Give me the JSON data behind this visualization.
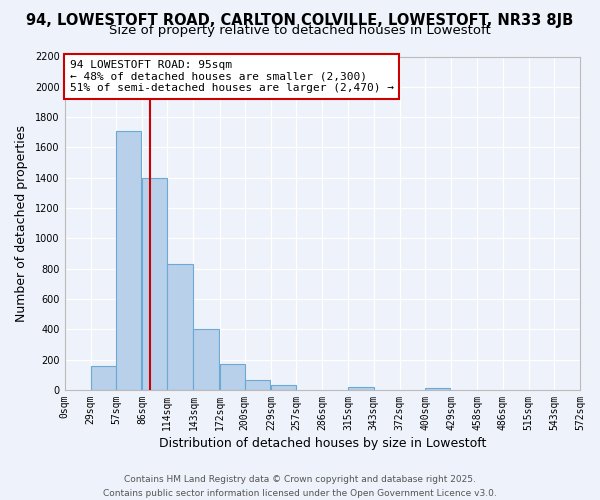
{
  "title": "94, LOWESTOFT ROAD, CARLTON COLVILLE, LOWESTOFT, NR33 8JB",
  "subtitle": "Size of property relative to detached houses in Lowestoft",
  "xlabel": "Distribution of detached houses by size in Lowestoft",
  "ylabel": "Number of detached properties",
  "bar_left_edges": [
    0,
    29,
    57,
    86,
    114,
    143,
    172,
    200,
    229,
    257,
    286,
    315,
    343,
    372,
    400,
    429,
    458,
    486,
    515,
    543
  ],
  "bar_heights": [
    0,
    160,
    1710,
    1400,
    830,
    400,
    170,
    65,
    30,
    0,
    0,
    20,
    0,
    0,
    10,
    0,
    0,
    0,
    0,
    0
  ],
  "bin_width": 29,
  "bar_color": "#b8d0ea",
  "bar_edge_color": "#6aaad4",
  "vline_x": 95,
  "vline_color": "#cc0000",
  "ylim": [
    0,
    2200
  ],
  "yticks": [
    0,
    200,
    400,
    600,
    800,
    1000,
    1200,
    1400,
    1600,
    1800,
    2000,
    2200
  ],
  "xtick_labels": [
    "0sqm",
    "29sqm",
    "57sqm",
    "86sqm",
    "114sqm",
    "143sqm",
    "172sqm",
    "200sqm",
    "229sqm",
    "257sqm",
    "286sqm",
    "315sqm",
    "343sqm",
    "372sqm",
    "400sqm",
    "429sqm",
    "458sqm",
    "486sqm",
    "515sqm",
    "543sqm",
    "572sqm"
  ],
  "xtick_positions": [
    0,
    29,
    57,
    86,
    114,
    143,
    172,
    200,
    229,
    257,
    286,
    315,
    343,
    372,
    400,
    429,
    458,
    486,
    515,
    543,
    572
  ],
  "xlim": [
    0,
    572
  ],
  "annotation_line1": "94 LOWESTOFT ROAD: 95sqm",
  "annotation_line2": "← 48% of detached houses are smaller (2,300)",
  "annotation_line3": "51% of semi-detached houses are larger (2,470) →",
  "footer1": "Contains HM Land Registry data © Crown copyright and database right 2025.",
  "footer2": "Contains public sector information licensed under the Open Government Licence v3.0.",
  "bg_color": "#eef2fa",
  "grid_color": "#ffffff",
  "title_fontsize": 10.5,
  "subtitle_fontsize": 9.5,
  "axis_label_fontsize": 9,
  "tick_fontsize": 7,
  "footer_fontsize": 6.5,
  "annotation_fontsize": 8
}
